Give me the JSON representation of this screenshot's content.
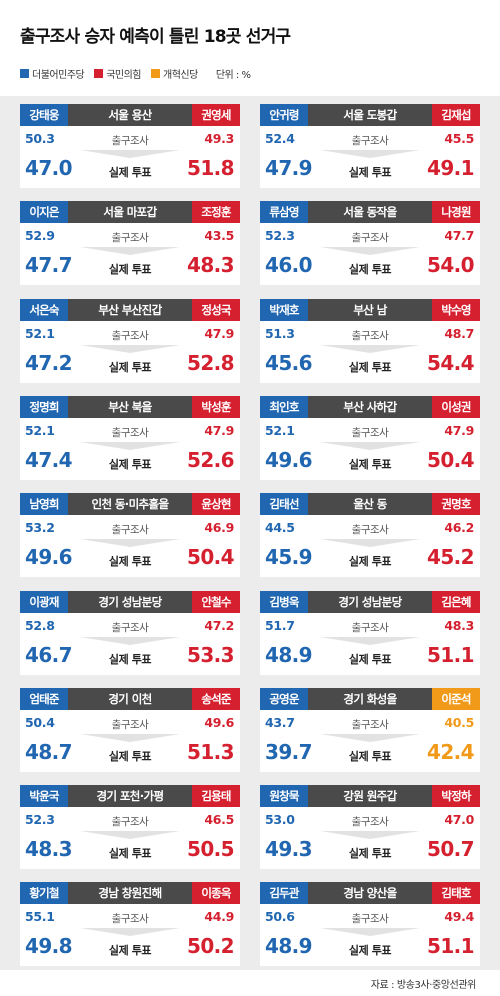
{
  "title": "출구조사 승자 예측이 틀린 18곳 선거구",
  "legend": {
    "items": [
      {
        "label": "더불어민주당",
        "color": "#2066b0"
      },
      {
        "label": "국민의힘",
        "color": "#d52030"
      },
      {
        "label": "개혁신당",
        "color": "#f19a1a"
      }
    ],
    "unit": "단위 : %"
  },
  "labels": {
    "exit_poll": "출구조사",
    "actual_vote": "실제 투표"
  },
  "source": "자료 : 방송3사·중앙선관위",
  "chart_data": {
    "type": "table",
    "title": "출구조사 승자 예측이 틀린 18곳 선거구",
    "unit": "%",
    "columns": [
      "district",
      "left_candidate",
      "left_party",
      "right_candidate",
      "right_party",
      "exit_left",
      "exit_right",
      "actual_left",
      "actual_right"
    ],
    "districts": [
      {
        "district": "서울 용산",
        "left": {
          "name": "강태웅",
          "party": "더불어민주당",
          "exit": "50.3",
          "actual": "47.0"
        },
        "right": {
          "name": "권영세",
          "party": "국민의힘",
          "exit": "49.3",
          "actual": "51.8"
        }
      },
      {
        "district": "서울 도봉갑",
        "left": {
          "name": "안귀령",
          "party": "더불어민주당",
          "exit": "52.4",
          "actual": "47.9"
        },
        "right": {
          "name": "김재섭",
          "party": "국민의힘",
          "exit": "45.5",
          "actual": "49.1"
        }
      },
      {
        "district": "서울 마포갑",
        "left": {
          "name": "이지은",
          "party": "더불어민주당",
          "exit": "52.9",
          "actual": "47.7"
        },
        "right": {
          "name": "조정훈",
          "party": "국민의힘",
          "exit": "43.5",
          "actual": "48.3"
        }
      },
      {
        "district": "서울 동작을",
        "left": {
          "name": "류삼영",
          "party": "더불어민주당",
          "exit": "52.3",
          "actual": "46.0"
        },
        "right": {
          "name": "나경원",
          "party": "국민의힘",
          "exit": "47.7",
          "actual": "54.0"
        }
      },
      {
        "district": "부산 부산진갑",
        "left": {
          "name": "서은숙",
          "party": "더불어민주당",
          "exit": "52.1",
          "actual": "47.2"
        },
        "right": {
          "name": "정성국",
          "party": "국민의힘",
          "exit": "47.9",
          "actual": "52.8"
        }
      },
      {
        "district": "부산 남",
        "left": {
          "name": "박재호",
          "party": "더불어민주당",
          "exit": "51.3",
          "actual": "45.6"
        },
        "right": {
          "name": "박수영",
          "party": "국민의힘",
          "exit": "48.7",
          "actual": "54.4"
        }
      },
      {
        "district": "부산 북을",
        "left": {
          "name": "정명희",
          "party": "더불어민주당",
          "exit": "52.1",
          "actual": "47.4"
        },
        "right": {
          "name": "박성훈",
          "party": "국민의힘",
          "exit": "47.9",
          "actual": "52.6"
        }
      },
      {
        "district": "부산 사하갑",
        "left": {
          "name": "최인호",
          "party": "더불어민주당",
          "exit": "52.1",
          "actual": "49.6"
        },
        "right": {
          "name": "이성권",
          "party": "국민의힘",
          "exit": "47.9",
          "actual": "50.4"
        }
      },
      {
        "district": "인천 동·미추홀을",
        "left": {
          "name": "남영희",
          "party": "더불어민주당",
          "exit": "53.2",
          "actual": "49.6"
        },
        "right": {
          "name": "윤상현",
          "party": "국민의힘",
          "exit": "46.9",
          "actual": "50.4"
        }
      },
      {
        "district": "울산 동",
        "left": {
          "name": "김태선",
          "party": "더불어민주당",
          "exit": "44.5",
          "actual": "45.9"
        },
        "right": {
          "name": "권명호",
          "party": "국민의힘",
          "exit": "46.2",
          "actual": "45.2"
        }
      },
      {
        "district": "경기 성남분당",
        "left": {
          "name": "이광재",
          "party": "더불어민주당",
          "exit": "52.8",
          "actual": "46.7"
        },
        "right": {
          "name": "안철수",
          "party": "국민의힘",
          "exit": "47.2",
          "actual": "53.3"
        }
      },
      {
        "district": "경기 성남분당",
        "left": {
          "name": "김병욱",
          "party": "더불어민주당",
          "exit": "51.7",
          "actual": "48.9"
        },
        "right": {
          "name": "김은혜",
          "party": "국민의힘",
          "exit": "48.3",
          "actual": "51.1"
        }
      },
      {
        "district": "경기 이천",
        "left": {
          "name": "엄태준",
          "party": "더불어민주당",
          "exit": "50.4",
          "actual": "48.7"
        },
        "right": {
          "name": "송석준",
          "party": "국민의힘",
          "exit": "49.6",
          "actual": "51.3"
        }
      },
      {
        "district": "경기 화성을",
        "left": {
          "name": "공영운",
          "party": "더불어민주당",
          "exit": "43.7",
          "actual": "39.7"
        },
        "right": {
          "name": "이준석",
          "party": "개혁신당",
          "exit": "40.5",
          "actual": "42.4"
        }
      },
      {
        "district": "경기 포천·가평",
        "left": {
          "name": "박윤국",
          "party": "더불어민주당",
          "exit": "52.3",
          "actual": "48.3"
        },
        "right": {
          "name": "김용태",
          "party": "국민의힘",
          "exit": "46.5",
          "actual": "50.5"
        }
      },
      {
        "district": "강원 원주갑",
        "left": {
          "name": "원창묵",
          "party": "더불어민주당",
          "exit": "53.0",
          "actual": "49.3"
        },
        "right": {
          "name": "박정하",
          "party": "국민의힘",
          "exit": "47.0",
          "actual": "50.7"
        }
      },
      {
        "district": "경남 창원진해",
        "left": {
          "name": "황기철",
          "party": "더불어민주당",
          "exit": "55.1",
          "actual": "49.8"
        },
        "right": {
          "name": "이종욱",
          "party": "국민의힘",
          "exit": "44.9",
          "actual": "50.2"
        }
      },
      {
        "district": "경남 양산을",
        "left": {
          "name": "김두관",
          "party": "더불어민주당",
          "exit": "50.6",
          "actual": "48.9"
        },
        "right": {
          "name": "김태호",
          "party": "국민의힘",
          "exit": "49.4",
          "actual": "51.1"
        }
      }
    ]
  }
}
